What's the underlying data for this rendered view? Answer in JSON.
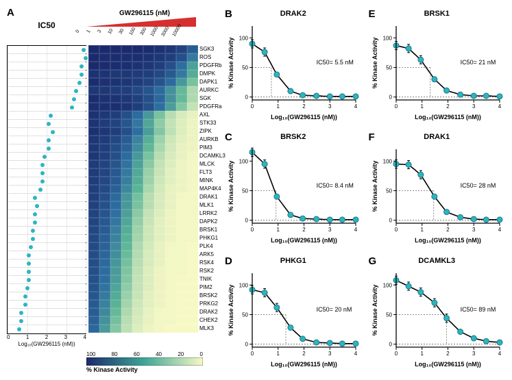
{
  "colors": {
    "dot": "#2cb5c0",
    "dot_stroke": "#1a7a84",
    "axis": "#000000",
    "grid": "#cccccc",
    "heat_high": "#1a2a6c",
    "heat_low": "#f7f9c5",
    "triangle": "#d62f2f",
    "bg": "#ffffff"
  },
  "panel_a": {
    "label": "A",
    "ic50_title": "IC50",
    "conc_title": "GW296115 (nM)",
    "conc_ticks": [
      "0",
      "1",
      "3",
      "10",
      "30",
      "100",
      "300",
      "1000",
      "3000",
      "10000"
    ],
    "ic50_xlabel": "Log₁₀(GW296115 (nM))",
    "ic50_xticks": [
      "0",
      "1",
      "2",
      "3",
      "4"
    ],
    "heat_xlabel": "% Kinase Activity",
    "heat_xticks": [
      "100",
      "80",
      "60",
      "40",
      "20",
      "0"
    ],
    "kinases": [
      {
        "name": "SGK3",
        "log_ic50": 3.9,
        "heat": [
          100,
          100,
          100,
          100,
          100,
          99,
          96,
          92,
          85,
          70
        ]
      },
      {
        "name": "ROS",
        "log_ic50": 4.0,
        "heat": [
          100,
          98,
          98,
          97,
          97,
          95,
          93,
          88,
          78,
          55
        ]
      },
      {
        "name": "PDGFRb",
        "log_ic50": 3.8,
        "heat": [
          100,
          99,
          98,
          97,
          95,
          93,
          88,
          78,
          60,
          38
        ]
      },
      {
        "name": "DMPK",
        "log_ic50": 3.8,
        "heat": [
          95,
          94,
          92,
          92,
          90,
          88,
          82,
          72,
          55,
          33
        ]
      },
      {
        "name": "DAPK1",
        "log_ic50": 3.7,
        "heat": [
          98,
          96,
          95,
          93,
          90,
          85,
          76,
          62,
          42,
          24
        ]
      },
      {
        "name": "AURKC",
        "log_ic50": 3.5,
        "heat": [
          92,
          92,
          90,
          88,
          82,
          75,
          62,
          45,
          28,
          14
        ]
      },
      {
        "name": "SGK",
        "log_ic50": 3.4,
        "heat": [
          98,
          96,
          95,
          92,
          87,
          78,
          64,
          45,
          28,
          14
        ]
      },
      {
        "name": "PDGFRa",
        "log_ic50": 3.3,
        "heat": [
          97,
          97,
          97,
          94,
          89,
          78,
          60,
          40,
          22,
          10
        ]
      },
      {
        "name": "AXL",
        "log_ic50": 2.2,
        "heat": [
          95,
          92,
          88,
          78,
          62,
          42,
          24,
          12,
          6,
          3
        ]
      },
      {
        "name": "STK33",
        "log_ic50": 2.1,
        "heat": [
          94,
          90,
          85,
          74,
          56,
          36,
          20,
          10,
          5,
          2
        ]
      },
      {
        "name": "ZIPK",
        "log_ic50": 2.3,
        "heat": [
          96,
          93,
          88,
          78,
          60,
          40,
          22,
          11,
          5,
          2
        ]
      },
      {
        "name": "AURKB",
        "log_ic50": 2.1,
        "heat": [
          93,
          90,
          83,
          70,
          51,
          32,
          17,
          8,
          4,
          2
        ]
      },
      {
        "name": "PIM3",
        "log_ic50": 2.1,
        "heat": [
          92,
          88,
          80,
          67,
          48,
          29,
          15,
          7,
          3,
          2
        ]
      },
      {
        "name": "DCAMKL3",
        "log_ic50": 1.9,
        "heat": [
          93,
          87,
          78,
          62,
          42,
          24,
          12,
          6,
          3,
          1
        ]
      },
      {
        "name": "MLCK",
        "log_ic50": 1.8,
        "heat": [
          90,
          85,
          75,
          58,
          38,
          21,
          10,
          5,
          2,
          1
        ]
      },
      {
        "name": "FLT3",
        "log_ic50": 1.8,
        "heat": [
          90,
          84,
          73,
          55,
          35,
          18,
          9,
          4,
          2,
          1
        ]
      },
      {
        "name": "MINK",
        "log_ic50": 1.8,
        "heat": [
          89,
          83,
          71,
          53,
          33,
          17,
          8,
          4,
          2,
          1
        ]
      },
      {
        "name": "MAP4K4",
        "log_ic50": 1.7,
        "heat": [
          88,
          81,
          68,
          49,
          30,
          15,
          7,
          3,
          2,
          1
        ]
      },
      {
        "name": "DRAK1",
        "log_ic50": 1.4,
        "heat": [
          87,
          78,
          63,
          43,
          25,
          12,
          6,
          3,
          1,
          1
        ]
      },
      {
        "name": "MLK1",
        "log_ic50": 1.5,
        "heat": [
          86,
          77,
          62,
          42,
          24,
          12,
          6,
          3,
          1,
          1
        ]
      },
      {
        "name": "LRRK2",
        "log_ic50": 1.4,
        "heat": [
          85,
          75,
          59,
          39,
          21,
          10,
          5,
          2,
          1,
          1
        ]
      },
      {
        "name": "DAPK2",
        "log_ic50": 1.4,
        "heat": [
          84,
          73,
          56,
          36,
          19,
          9,
          4,
          2,
          1,
          1
        ]
      },
      {
        "name": "BRSK1",
        "log_ic50": 1.3,
        "heat": [
          83,
          71,
          53,
          33,
          17,
          8,
          4,
          2,
          1,
          1
        ]
      },
      {
        "name": "PHKG1",
        "log_ic50": 1.3,
        "heat": [
          82,
          69,
          51,
          31,
          16,
          8,
          4,
          2,
          1,
          1
        ]
      },
      {
        "name": "PLK4",
        "log_ic50": 1.2,
        "heat": [
          81,
          67,
          48,
          29,
          14,
          7,
          3,
          1,
          1,
          0
        ]
      },
      {
        "name": "ARK5",
        "log_ic50": 1.1,
        "heat": [
          80,
          65,
          46,
          27,
          13,
          6,
          3,
          1,
          1,
          0
        ]
      },
      {
        "name": "RSK4",
        "log_ic50": 1.1,
        "heat": [
          79,
          63,
          43,
          25,
          12,
          6,
          3,
          1,
          1,
          0
        ]
      },
      {
        "name": "RSK2",
        "log_ic50": 1.1,
        "heat": [
          78,
          61,
          41,
          23,
          11,
          5,
          2,
          1,
          1,
          0
        ]
      },
      {
        "name": "TNIK",
        "log_ic50": 1.1,
        "heat": [
          77,
          60,
          40,
          22,
          10,
          5,
          2,
          1,
          0,
          0
        ]
      },
      {
        "name": "PIM2",
        "log_ic50": 1.0,
        "heat": [
          76,
          58,
          37,
          20,
          10,
          5,
          2,
          1,
          0,
          0
        ]
      },
      {
        "name": "BRSK2",
        "log_ic50": 0.9,
        "heat": [
          74,
          55,
          34,
          18,
          9,
          4,
          2,
          1,
          0,
          0
        ]
      },
      {
        "name": "PRKG2",
        "log_ic50": 0.9,
        "heat": [
          72,
          52,
          31,
          16,
          8,
          4,
          2,
          1,
          0,
          0
        ]
      },
      {
        "name": "DRAK2",
        "log_ic50": 0.7,
        "heat": [
          70,
          49,
          28,
          14,
          7,
          3,
          1,
          1,
          0,
          0
        ]
      },
      {
        "name": "CHEK2",
        "log_ic50": 0.7,
        "heat": [
          67,
          45,
          25,
          12,
          6,
          3,
          1,
          1,
          0,
          0
        ]
      },
      {
        "name": "MLK3",
        "log_ic50": 0.6,
        "heat": [
          64,
          41,
          22,
          11,
          5,
          2,
          1,
          0,
          0,
          0
        ]
      }
    ]
  },
  "mini_charts": [
    {
      "label": "B",
      "title": "DRAK2",
      "ic50_text": "IC50= 5.5 nM",
      "ic50_log": 0.74,
      "points": [
        [
          0,
          90
        ],
        [
          0.48,
          76
        ],
        [
          0.95,
          38
        ],
        [
          1.48,
          10
        ],
        [
          1.95,
          3
        ],
        [
          2.48,
          2
        ],
        [
          3,
          1
        ],
        [
          3.48,
          1
        ],
        [
          4,
          1
        ]
      ]
    },
    {
      "label": "C",
      "title": "BRSK2",
      "ic50_text": "IC50= 8.4 nM",
      "ic50_log": 0.92,
      "points": [
        [
          0,
          115
        ],
        [
          0.48,
          95
        ],
        [
          0.95,
          40
        ],
        [
          1.48,
          9
        ],
        [
          1.95,
          3
        ],
        [
          2.48,
          2
        ],
        [
          3,
          1
        ],
        [
          3.48,
          1
        ],
        [
          4,
          1
        ]
      ]
    },
    {
      "label": "D",
      "title": "PHKG1",
      "ic50_text": "IC50= 20 nM",
      "ic50_log": 1.3,
      "points": [
        [
          0,
          92
        ],
        [
          0.48,
          87
        ],
        [
          0.95,
          62
        ],
        [
          1.48,
          28
        ],
        [
          1.95,
          9
        ],
        [
          2.48,
          3
        ],
        [
          3,
          2
        ],
        [
          3.48,
          1
        ],
        [
          4,
          1
        ]
      ]
    },
    {
      "label": "E",
      "title": "BRSK1",
      "ic50_text": "IC50= 21 nM",
      "ic50_log": 1.32,
      "points": [
        [
          0,
          87
        ],
        [
          0.48,
          82
        ],
        [
          0.95,
          63
        ],
        [
          1.48,
          30
        ],
        [
          1.95,
          11
        ],
        [
          2.48,
          4
        ],
        [
          3,
          2
        ],
        [
          3.48,
          2
        ],
        [
          4,
          1
        ]
      ]
    },
    {
      "label": "F",
      "title": "DRAK1",
      "ic50_text": "IC50= 28 nM",
      "ic50_log": 1.45,
      "points": [
        [
          0,
          95
        ],
        [
          0.48,
          94
        ],
        [
          0.95,
          77
        ],
        [
          1.48,
          40
        ],
        [
          1.95,
          14
        ],
        [
          2.48,
          5
        ],
        [
          3,
          2
        ],
        [
          3.48,
          1
        ],
        [
          4,
          1
        ]
      ]
    },
    {
      "label": "G",
      "title": "DCAMKL3",
      "ic50_text": "IC50= 89 nM",
      "ic50_log": 1.95,
      "points": [
        [
          0,
          108
        ],
        [
          0.48,
          98
        ],
        [
          0.95,
          88
        ],
        [
          1.48,
          70
        ],
        [
          1.95,
          44
        ],
        [
          2.48,
          21
        ],
        [
          3,
          10
        ],
        [
          3.48,
          5
        ],
        [
          4,
          3
        ]
      ]
    }
  ],
  "mini_chart_common": {
    "xlabel": "Log₁₀(GW296115 (nM))",
    "ylabel": "% Kinase Activity",
    "xlim": [
      0,
      4
    ],
    "ylim": [
      -5,
      120
    ],
    "xticks": [
      0,
      1,
      2,
      3,
      4
    ],
    "yticks": [
      0,
      50,
      100
    ]
  }
}
